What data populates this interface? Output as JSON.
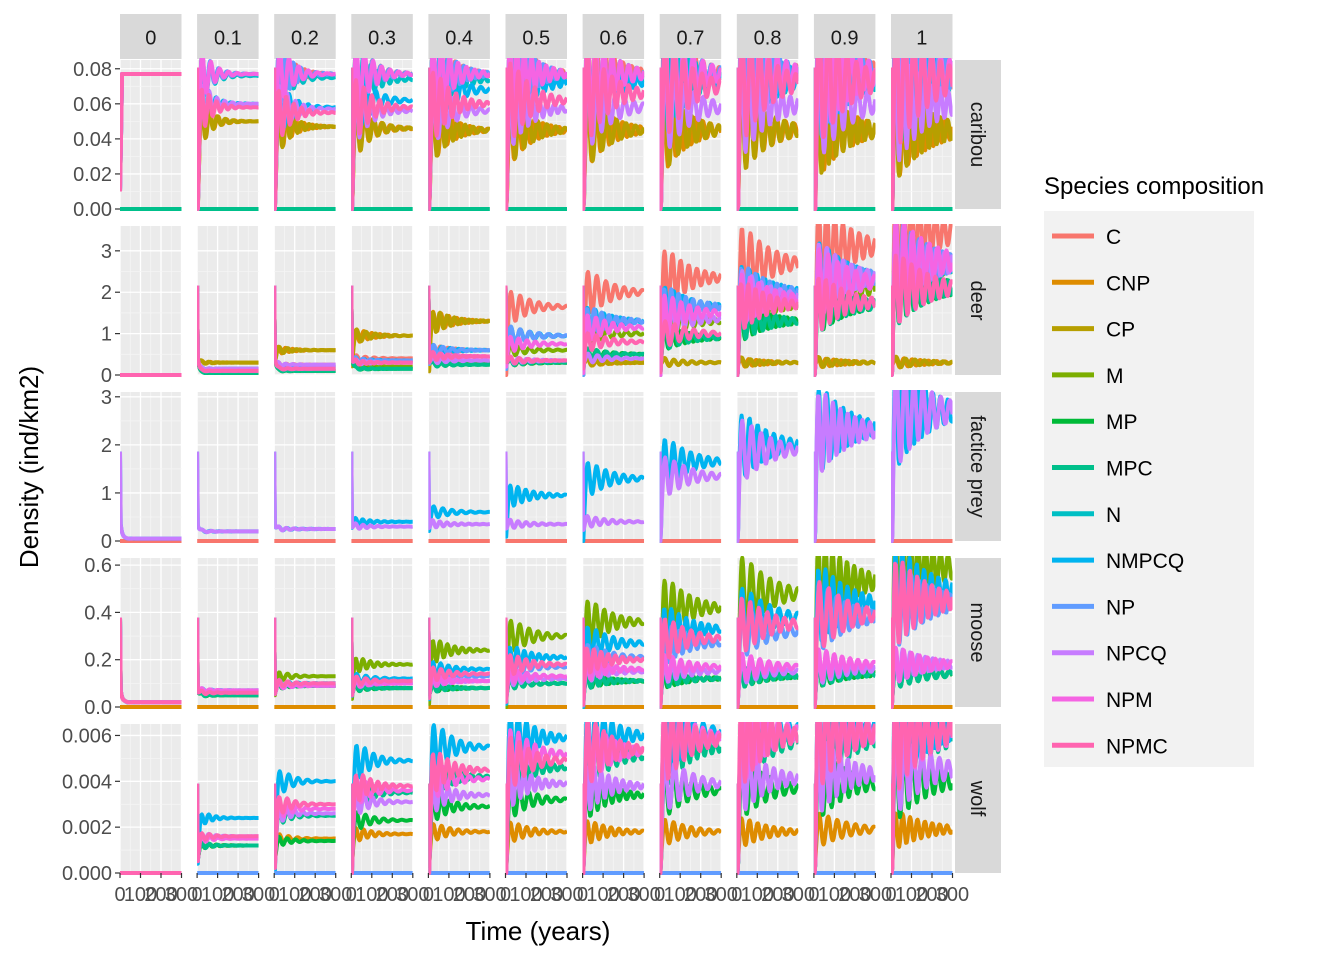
{
  "chart_data": {
    "type": "line",
    "title": "",
    "xlabel": "Time (years)",
    "ylabel": "Density (ind/km2)",
    "legend": {
      "title": "Species composition",
      "placement": "right",
      "entries": [
        "C",
        "CNP",
        "CP",
        "M",
        "MP",
        "MPC",
        "N",
        "NMPCQ",
        "NP",
        "NPCQ",
        "NPM",
        "NPMC"
      ]
    },
    "colors": {
      "C": "#F8766D",
      "CNP": "#DE8C00",
      "CP": "#B79F00",
      "M": "#7CAE00",
      "MP": "#00BA38",
      "MPC": "#00C08B",
      "N": "#00BFC4",
      "NMPCQ": "#00B4F0",
      "NP": "#619CFF",
      "NPCQ": "#C77CFF",
      "NPM": "#F564E3",
      "NPMC": "#FF64B0"
    },
    "facet_columns": [
      "0",
      "0.1",
      "0.2",
      "0.3",
      "0.4",
      "0.5",
      "0.6",
      "0.7",
      "0.8",
      "0.9",
      "1"
    ],
    "facet_rows": [
      "caribou",
      "deer",
      "factice prey",
      "moose",
      "wolf"
    ],
    "x_axis": {
      "range": [
        0,
        300
      ],
      "ticks": [
        "0",
        "100",
        "200",
        "300"
      ]
    },
    "y_axes": [
      {
        "row": "caribou",
        "range": [
          0,
          0.085
        ],
        "ticks": [
          0,
          0.02,
          0.04,
          0.06,
          0.08
        ],
        "tick_labels": [
          "0.00",
          "0.02",
          "0.04",
          "0.06",
          "0.08"
        ]
      },
      {
        "row": "deer",
        "range": [
          0,
          3.6
        ],
        "ticks": [
          0,
          1,
          2,
          3
        ],
        "tick_labels": [
          "0",
          "1",
          "2",
          "3"
        ]
      },
      {
        "row": "factice prey",
        "range": [
          0,
          3.1
        ],
        "ticks": [
          0,
          1,
          2,
          3
        ],
        "tick_labels": [
          "0",
          "1",
          "2",
          "3"
        ]
      },
      {
        "row": "moose",
        "range": [
          0,
          0.63
        ],
        "ticks": [
          0,
          0.2,
          0.4,
          0.6
        ],
        "tick_labels": [
          "0.0",
          "0.2",
          "0.4",
          "0.6"
        ]
      },
      {
        "row": "wolf",
        "range": [
          0,
          0.0065
        ],
        "ticks": [
          0,
          0.002,
          0.004,
          0.006
        ],
        "tick_labels": [
          "0.000",
          "0.002",
          "0.004",
          "0.006"
        ]
      }
    ],
    "equilibria": {
      "caribou": {
        "C": [
          0.077,
          0.077,
          0.077,
          0.077,
          0.077,
          0.077,
          0.077,
          0.077,
          0.077,
          0.077,
          0.077
        ],
        "CNP": [
          null,
          0.05,
          0.047,
          0.046,
          0.045,
          0.045,
          0.045,
          0.045,
          0.045,
          0.045,
          0.045
        ],
        "CP": [
          null,
          0.05,
          0.047,
          0.046,
          0.045,
          0.045,
          0.045,
          0.045,
          0.045,
          0.045,
          0.045
        ],
        "MPC": [
          0,
          0,
          0,
          0,
          0,
          0,
          0,
          0,
          0,
          0,
          0
        ],
        "N": [
          0.077,
          0.076,
          0.075,
          0.074,
          0.074,
          0.074,
          0.074,
          0.074,
          0.074,
          0.074,
          0.074
        ],
        "NMPCQ": [
          0.077,
          0.06,
          0.058,
          0.062,
          0.068,
          0.072,
          0.073,
          0.074,
          0.075,
          0.075,
          0.076
        ],
        "NP": [
          0.077,
          0.077,
          0.077,
          0.077,
          0.077,
          0.077,
          0.077,
          0.077,
          0.077,
          0.077,
          0.077
        ],
        "NPCQ": [
          0.077,
          0.06,
          0.057,
          0.056,
          0.056,
          0.057,
          0.058,
          0.058,
          0.059,
          0.06,
          0.06
        ],
        "NPM": [
          0.077,
          0.077,
          0.077,
          0.077,
          0.077,
          0.077,
          0.077,
          0.077,
          0.077,
          0.077,
          0.077
        ],
        "NPMC": [
          0.077,
          0.058,
          0.055,
          0.058,
          0.06,
          0.062,
          0.066,
          0.07,
          0.072,
          0.073,
          0.074
        ]
      },
      "deer": {
        "C": [
          0,
          0.15,
          0.25,
          0.4,
          0.6,
          1.65,
          2.0,
          2.35,
          2.7,
          3.1,
          3.45
        ],
        "CNP": [
          0,
          0.3,
          0.6,
          0.95,
          1.3,
          0.3,
          0.3,
          0.3,
          0.3,
          0.3,
          0.3
        ],
        "CP": [
          0,
          0.3,
          0.6,
          0.95,
          1.3,
          0.3,
          0.3,
          0.3,
          0.3,
          0.3,
          0.3
        ],
        "M": [
          0,
          0.05,
          0.1,
          0.2,
          0.3,
          0.6,
          1.0,
          1.3,
          1.7,
          2.1,
          2.7
        ],
        "MP": [
          0,
          0.05,
          0.1,
          0.15,
          0.25,
          0.3,
          0.5,
          0.9,
          1.3,
          1.7,
          2.1
        ],
        "MPC": [
          0,
          0.05,
          0.1,
          0.15,
          0.25,
          0.3,
          0.5,
          0.9,
          1.3,
          1.7,
          2.1
        ],
        "NMPCQ": [
          0,
          0.15,
          0.2,
          0.35,
          0.6,
          0.95,
          1.3,
          1.65,
          2.0,
          2.35,
          2.7
        ],
        "NP": [
          0,
          0.15,
          0.2,
          0.35,
          0.6,
          0.95,
          1.3,
          1.65,
          2.0,
          2.35,
          2.7
        ],
        "NPCQ": [
          0,
          0.15,
          0.25,
          0.3,
          0.35,
          0.35,
          0.4,
          1.35,
          1.9,
          2.35,
          2.7
        ],
        "NPM": [
          0,
          0.1,
          0.15,
          0.3,
          0.45,
          0.75,
          1.15,
          1.5,
          1.85,
          2.25,
          2.75
        ],
        "NPMC": [
          0,
          0.1,
          0.15,
          0.3,
          0.45,
          0.35,
          0.8,
          1.0,
          1.7,
          1.75,
          2.1
        ]
      },
      "factice prey": {
        "NMPCQ": [
          0.05,
          0.2,
          0.25,
          0.4,
          0.6,
          0.95,
          1.3,
          1.65,
          2.0,
          2.35,
          2.7
        ],
        "NPCQ": [
          0.05,
          0.2,
          0.25,
          0.3,
          0.35,
          0.35,
          0.4,
          1.35,
          1.9,
          2.3,
          2.7
        ],
        "C": [
          0,
          0,
          0,
          0,
          0,
          0,
          0,
          0,
          0,
          0,
          0
        ]
      },
      "moose": {
        "M": [
          0.02,
          0.05,
          0.13,
          0.18,
          0.24,
          0.3,
          0.36,
          0.42,
          0.48,
          0.53,
          0.59
        ],
        "MP": [
          0.02,
          0.05,
          0.09,
          0.08,
          0.08,
          0.1,
          0.11,
          0.12,
          0.13,
          0.14,
          0.14
        ],
        "MPC": [
          0.02,
          0.05,
          0.09,
          0.08,
          0.08,
          0.1,
          0.11,
          0.12,
          0.13,
          0.14,
          0.14
        ],
        "NMPCQ": [
          0.02,
          0.07,
          0.1,
          0.12,
          0.16,
          0.21,
          0.27,
          0.33,
          0.38,
          0.44,
          0.49
        ],
        "NP": [
          0.02,
          0.07,
          0.09,
          0.1,
          0.13,
          0.17,
          0.21,
          0.27,
          0.32,
          0.38,
          0.44
        ],
        "NPCQ": [
          0.02,
          0.07,
          0.09,
          0.1,
          0.11,
          0.12,
          0.15,
          0.15,
          0.15,
          0.16,
          0.18
        ],
        "NPM": [
          0.02,
          0.07,
          0.09,
          0.1,
          0.11,
          0.13,
          0.16,
          0.17,
          0.17,
          0.18,
          0.18
        ],
        "NPMC": [
          0.02,
          0.06,
          0.1,
          0.11,
          0.14,
          0.18,
          0.2,
          0.29,
          0.35,
          0.39,
          0.45
        ],
        "CNP": [
          0,
          0,
          0,
          0,
          0,
          0,
          0,
          0,
          0,
          0,
          0
        ]
      },
      "wolf": {
        "NMPCQ": [
          0,
          0.0024,
          0.004,
          0.0049,
          0.0055,
          0.0059,
          0.006,
          0.0061,
          0.0062,
          0.0062,
          0.0063
        ],
        "NPMC": [
          0,
          0.0016,
          0.003,
          0.0038,
          0.0045,
          0.0049,
          0.0054,
          0.0058,
          0.006,
          0.0061,
          0.0062
        ],
        "NPM": [
          0,
          0.0015,
          0.0028,
          0.0036,
          0.0041,
          0.0052,
          0.0053,
          0.0059,
          0.0061,
          0.0061,
          0.0061
        ],
        "NPCQ": [
          0,
          0.0016,
          0.0026,
          0.0031,
          0.0034,
          0.0039,
          0.0038,
          0.0039,
          0.0041,
          0.0043,
          0.0045
        ],
        "MP": [
          0,
          0.0012,
          0.0014,
          0.0023,
          0.0029,
          0.0032,
          0.0034,
          0.0036,
          0.0037,
          0.0039,
          0.004
        ],
        "MPC": [
          0,
          0.0012,
          0.0025,
          0.0035,
          0.0042,
          0.0046,
          0.0051,
          0.0055,
          0.0058,
          0.0059,
          0.006
        ],
        "CNP": [
          0,
          0.0012,
          0.0015,
          0.0017,
          0.0018,
          0.0018,
          0.0018,
          0.0018,
          0.0018,
          0.0019,
          0.0019
        ],
        "NP": [
          0,
          0,
          0,
          0,
          0,
          0,
          0,
          0,
          0,
          0,
          0
        ]
      }
    }
  }
}
